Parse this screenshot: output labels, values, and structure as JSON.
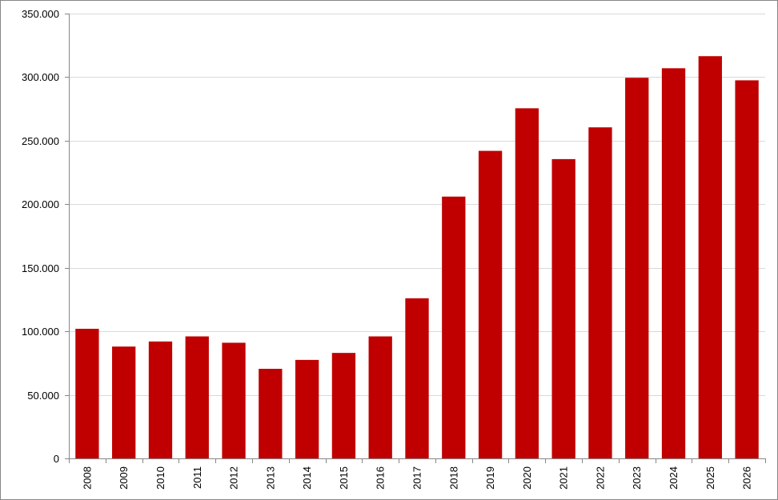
{
  "chart_data": {
    "type": "bar",
    "title": "",
    "xlabel": "",
    "ylabel": "",
    "categories": [
      "2008",
      "2009",
      "2010",
      "2011",
      "2012",
      "2013",
      "2014",
      "2015",
      "2016",
      "2017",
      "2018",
      "2019",
      "2020",
      "2021",
      "2022",
      "2023",
      "2024",
      "2025",
      "2026"
    ],
    "values": [
      102000,
      88000,
      92000,
      96000,
      91000,
      70500,
      77500,
      83000,
      96000,
      126000,
      206000,
      242000,
      275500,
      235500,
      260500,
      299500,
      307000,
      316500,
      297500
    ],
    "ylim": [
      0,
      350000
    ],
    "yticks": [
      0,
      50000,
      100000,
      150000,
      200000,
      250000,
      300000,
      350000
    ],
    "ytick_labels": [
      "0",
      "50.000",
      "100.000",
      "150.000",
      "200.000",
      "250.000",
      "300.000",
      "350.000"
    ],
    "grid": true,
    "legend": "none",
    "bar_color": "#c00000",
    "grid_color": "#d9d9d9",
    "axis_color": "#868686"
  }
}
